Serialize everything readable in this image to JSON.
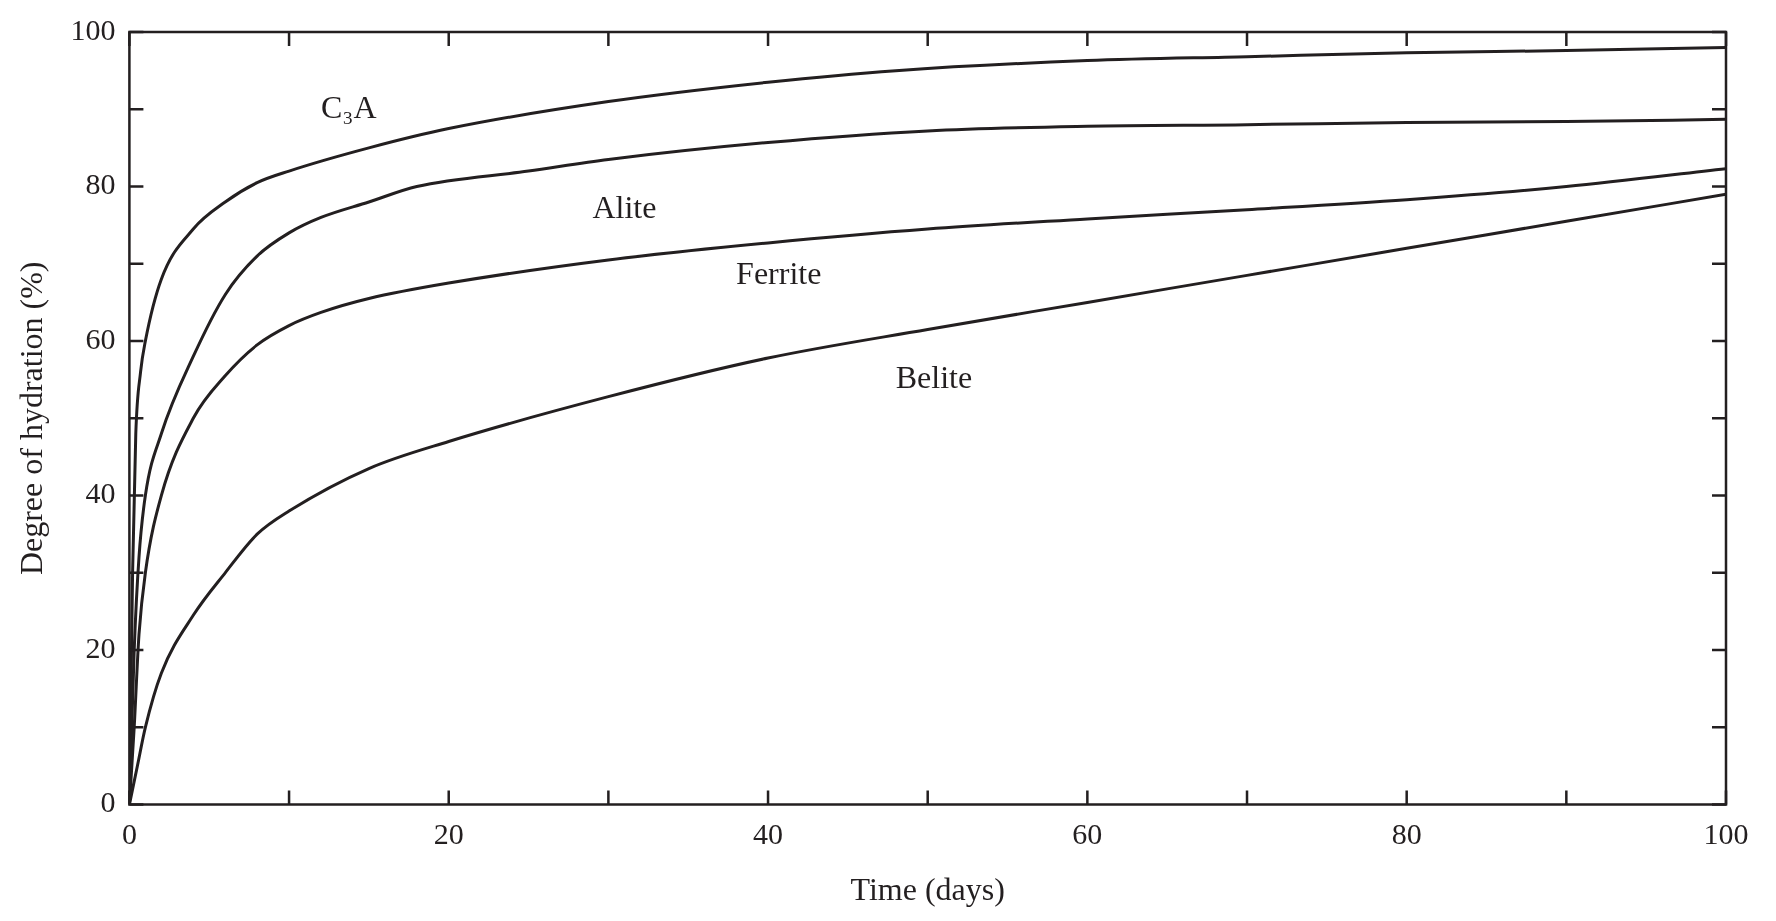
{
  "chart_data": {
    "type": "line",
    "xlabel": "Time (days)",
    "ylabel": "Degree of hydration (%)",
    "xlim": [
      0,
      100
    ],
    "ylim": [
      0,
      100
    ],
    "xticks": [
      0,
      {
        "value": 10,
        "label": null
      },
      20,
      {
        "value": 30,
        "label": null
      },
      40,
      {
        "value": 50,
        "label": null
      },
      60,
      {
        "value": 70,
        "label": null
      },
      80,
      {
        "value": 90,
        "label": null
      },
      100
    ],
    "yticks": [
      0,
      {
        "value": 10,
        "label": null
      },
      20,
      {
        "value": 30,
        "label": null
      },
      40,
      {
        "value": 50,
        "label": null
      },
      60,
      {
        "value": 70,
        "label": null
      },
      80,
      {
        "value": 90,
        "label": null
      },
      100
    ],
    "grid": false,
    "legend": false,
    "marker": "none",
    "line_style": "solid",
    "series": [
      {
        "name": "C₃A",
        "color": "#231f20",
        "x": [
          0,
          0.2,
          0.4,
          0.7,
          1,
          2,
          4,
          6,
          8,
          10,
          15,
          20,
          30,
          40,
          48,
          60,
          70,
          80,
          90,
          100
        ],
        "values": [
          0,
          30,
          48,
          56,
          60,
          68,
          74.5,
          78,
          80.5,
          82,
          85,
          87.5,
          91,
          93.5,
          95,
          96.3,
          96.8,
          97.3,
          97.6,
          98
        ]
      },
      {
        "name": "Alite",
        "color": "#231f20",
        "x": [
          0,
          0.3,
          0.6,
          1,
          2,
          4,
          6,
          8,
          10,
          12,
          15,
          18,
          25,
          30,
          40,
          50,
          60,
          70,
          80,
          90,
          100
        ],
        "values": [
          0,
          20,
          32,
          40,
          48,
          58,
          66,
          71,
          74,
          76,
          78,
          80,
          82,
          83.5,
          85.7,
          87.2,
          87.8,
          88,
          88.3,
          88.4,
          88.7
        ]
      },
      {
        "name": "Ferrite",
        "color": "#231f20",
        "x": [
          0,
          0.3,
          0.6,
          1,
          2,
          4,
          6,
          8,
          10,
          12,
          15,
          20,
          30,
          40,
          50,
          60,
          70,
          80,
          90,
          100
        ],
        "values": [
          0,
          10,
          22,
          30,
          40,
          50,
          55.5,
          59.5,
          62,
          63.7,
          65.5,
          67.5,
          70.5,
          72.7,
          74.5,
          75.8,
          77,
          78.3,
          80,
          82.3
        ]
      },
      {
        "name": "Belite",
        "color": "#231f20",
        "x": [
          0,
          0.5,
          1,
          2,
          4,
          6,
          8,
          10,
          15,
          20,
          30,
          40,
          50,
          60,
          70,
          80,
          90,
          100
        ],
        "values": [
          0,
          5,
          10,
          17,
          24.5,
          30,
          35,
          38,
          43.5,
          47,
          52.8,
          57.8,
          61.5,
          65,
          68.5,
          72,
          75.5,
          79
        ]
      }
    ]
  }
}
